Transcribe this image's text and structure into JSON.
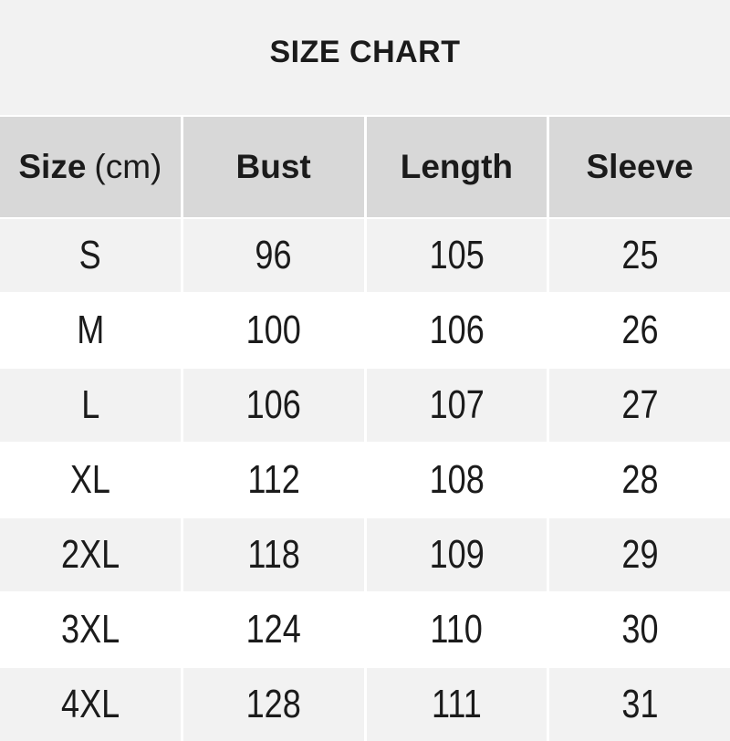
{
  "title": "SIZE CHART",
  "table": {
    "header": {
      "size": "Size",
      "size_unit": "(cm)",
      "bust": "Bust",
      "length": "Length",
      "sleeve": "Sleeve"
    }
  },
  "chart_data": {
    "type": "table",
    "title": "SIZE CHART",
    "unit": "cm",
    "columns": [
      "Size (cm)",
      "Bust",
      "Length",
      "Sleeve"
    ],
    "rows": [
      [
        "S",
        96,
        105,
        25
      ],
      [
        "M",
        100,
        106,
        26
      ],
      [
        "L",
        106,
        107,
        27
      ],
      [
        "XL",
        112,
        108,
        28
      ],
      [
        "2XL",
        118,
        109,
        29
      ],
      [
        "3XL",
        124,
        110,
        30
      ],
      [
        "4XL",
        128,
        111,
        31
      ]
    ]
  },
  "colors": {
    "page_bg": "#f2f2f2",
    "header_bg": "#d8d8d8",
    "row_alt_bg": "#f2f2f2",
    "row_bg": "#ffffff",
    "gap_color": "#ffffff",
    "text_color": "#1b1b1b"
  }
}
